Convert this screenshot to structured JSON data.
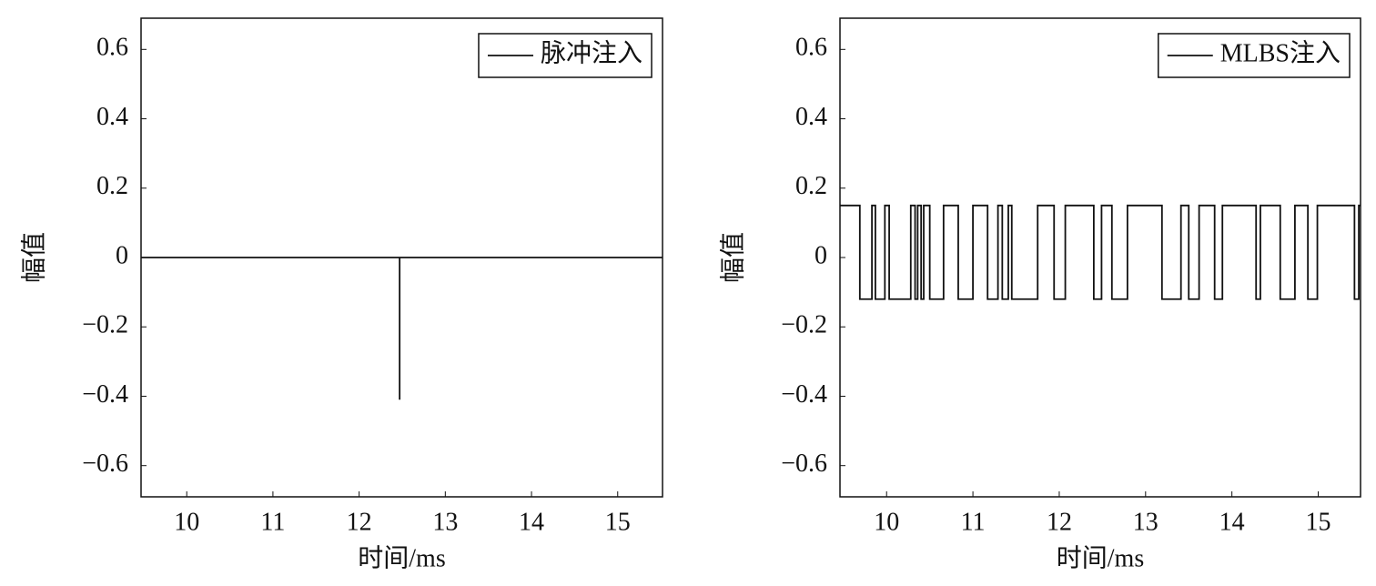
{
  "chart_data": [
    {
      "type": "line",
      "x": [
        9.47,
        12.47,
        12.47,
        12.47,
        15.52
      ],
      "series": [
        {
          "name": "脉冲注入",
          "color": "#111111",
          "values": [
            0,
            0,
            -0.41,
            0,
            0
          ]
        }
      ],
      "xlabel": "时间/ms",
      "ylabel": "幅值",
      "xlim": [
        9.47,
        15.52
      ],
      "xticks": [
        10,
        11,
        12,
        13,
        14,
        15
      ],
      "ylim": [
        -0.69,
        0.69
      ],
      "yticks": [
        {
          "value": -0.6,
          "label": "−0.6"
        },
        {
          "value": -0.4,
          "label": "−0.4"
        },
        {
          "value": -0.2,
          "label": "−0.2"
        },
        0,
        0.2,
        0.4,
        0.6
      ],
      "legend": "upper right"
    },
    {
      "type": "line",
      "x": [
        9.46,
        9.69,
        9.69,
        9.83,
        9.83,
        9.87,
        9.87,
        9.98,
        9.98,
        10.03,
        10.03,
        10.28,
        10.28,
        10.33,
        10.33,
        10.36,
        10.36,
        10.4,
        10.4,
        10.43,
        10.43,
        10.5,
        10.5,
        10.66,
        10.66,
        10.83,
        10.83,
        11.0,
        11.0,
        11.17,
        11.17,
        11.29,
        11.29,
        11.34,
        11.34,
        11.41,
        11.41,
        11.45,
        11.45,
        11.75,
        11.75,
        11.94,
        11.94,
        12.07,
        12.07,
        12.4,
        12.4,
        12.49,
        12.49,
        12.61,
        12.61,
        12.79,
        12.79,
        13.19,
        13.19,
        13.41,
        13.41,
        13.5,
        13.5,
        13.62,
        13.62,
        13.8,
        13.8,
        13.89,
        13.89,
        14.28,
        14.28,
        14.33,
        14.33,
        14.56,
        14.56,
        14.73,
        14.73,
        14.88,
        14.88,
        14.99,
        14.99,
        15.42,
        15.42,
        15.47,
        15.47,
        15.49
      ],
      "series": [
        {
          "name": "MLBS注入",
          "color": "#111111",
          "values": [
            0.15,
            0.15,
            -0.12,
            -0.12,
            0.15,
            0.15,
            -0.12,
            -0.12,
            0.15,
            0.15,
            -0.12,
            -0.12,
            0.15,
            0.15,
            -0.12,
            -0.12,
            0.15,
            0.15,
            -0.12,
            -0.12,
            0.15,
            0.15,
            -0.12,
            -0.12,
            0.15,
            0.15,
            -0.12,
            -0.12,
            0.15,
            0.15,
            -0.12,
            -0.12,
            0.15,
            0.15,
            -0.12,
            -0.12,
            0.15,
            0.15,
            -0.12,
            -0.12,
            0.15,
            0.15,
            -0.12,
            -0.12,
            0.15,
            0.15,
            -0.12,
            -0.12,
            0.15,
            0.15,
            -0.12,
            -0.12,
            0.15,
            0.15,
            -0.12,
            -0.12,
            0.15,
            0.15,
            -0.12,
            -0.12,
            0.15,
            0.15,
            -0.12,
            -0.12,
            0.15,
            0.15,
            -0.12,
            -0.12,
            0.15,
            0.15,
            -0.12,
            -0.12,
            0.15,
            0.15,
            -0.12,
            -0.12,
            0.15,
            0.15,
            -0.12,
            -0.12,
            0.15,
            0.15
          ]
        }
      ],
      "xlabel": "时间/ms",
      "ylabel": "幅值",
      "xlim": [
        9.46,
        15.49
      ],
      "xticks": [
        10,
        11,
        12,
        13,
        14,
        15
      ],
      "ylim": [
        -0.69,
        0.69
      ],
      "yticks": [
        {
          "value": -0.6,
          "label": "−0.6"
        },
        {
          "value": -0.4,
          "label": "−0.4"
        },
        {
          "value": -0.2,
          "label": "−0.2"
        },
        0,
        0.2,
        0.4,
        0.6
      ],
      "legend": "upper right"
    }
  ]
}
